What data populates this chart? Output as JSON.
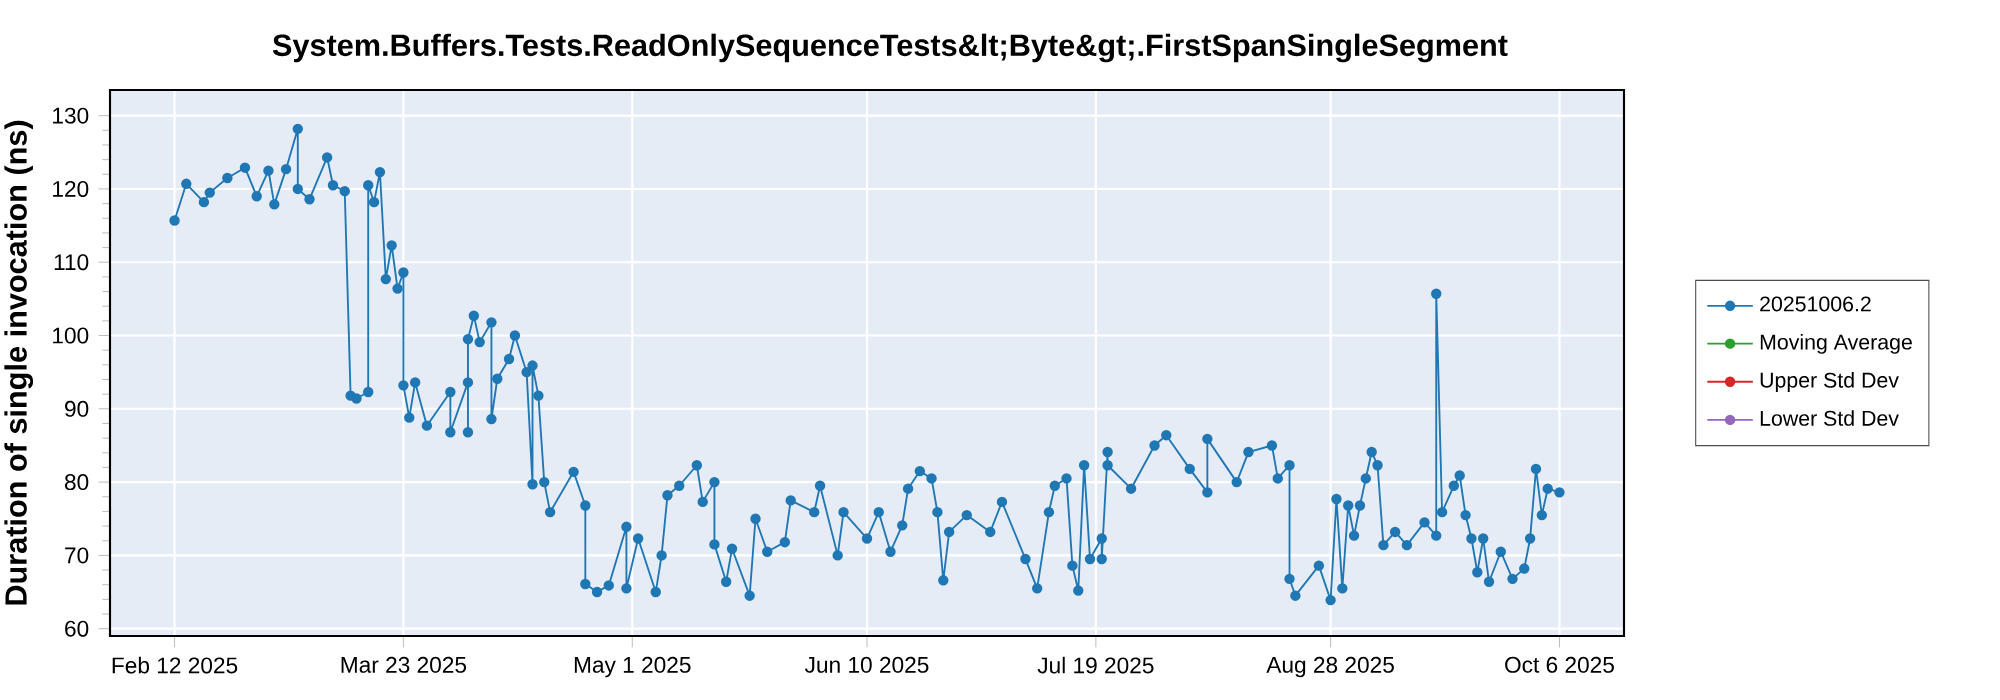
{
  "chart_data": {
    "type": "line",
    "title": "System.Buffers.Tests.ReadOnlySequenceTests&lt;Byte&gt;.FirstSpanSingleSegment",
    "ylabel": "Duration of single invocation (ns)",
    "x": [
      "2025-02-12",
      "2025-02-14",
      "2025-02-17",
      "2025-02-18",
      "2025-02-21",
      "2025-02-24",
      "2025-02-26",
      "2025-02-28",
      "2025-03-01",
      "2025-03-03",
      "2025-03-05",
      "2025-03-05",
      "2025-03-07",
      "2025-03-10",
      "2025-03-11",
      "2025-03-13",
      "2025-03-14",
      "2025-03-15",
      "2025-03-17",
      "2025-03-17",
      "2025-03-18",
      "2025-03-19",
      "2025-03-20",
      "2025-03-21",
      "2025-03-22",
      "2025-03-23",
      "2025-03-23",
      "2025-03-24",
      "2025-03-25",
      "2025-03-27",
      "2025-03-31",
      "2025-03-31",
      "2025-04-03",
      "2025-04-03",
      "2025-04-03",
      "2025-04-04",
      "2025-04-05",
      "2025-04-07",
      "2025-04-07",
      "2025-04-08",
      "2025-04-10",
      "2025-04-11",
      "2025-04-13",
      "2025-04-14",
      "2025-04-14",
      "2025-04-15",
      "2025-04-16",
      "2025-04-17",
      "2025-04-21",
      "2025-04-23",
      "2025-04-23",
      "2025-04-25",
      "2025-04-27",
      "2025-04-30",
      "2025-04-30",
      "2025-05-02",
      "2025-05-05",
      "2025-05-06",
      "2025-05-07",
      "2025-05-09",
      "2025-05-12",
      "2025-05-13",
      "2025-05-15",
      "2025-05-15",
      "2025-05-17",
      "2025-05-18",
      "2025-05-21",
      "2025-05-22",
      "2025-05-24",
      "2025-05-27",
      "2025-05-28",
      "2025-06-01",
      "2025-06-02",
      "2025-06-05",
      "2025-06-06",
      "2025-06-10",
      "2025-06-12",
      "2025-06-14",
      "2025-06-16",
      "2025-06-17",
      "2025-06-19",
      "2025-06-21",
      "2025-06-22",
      "2025-06-23",
      "2025-06-24",
      "2025-06-27",
      "2025-07-01",
      "2025-07-03",
      "2025-07-07",
      "2025-07-09",
      "2025-07-11",
      "2025-07-12",
      "2025-07-14",
      "2025-07-15",
      "2025-07-16",
      "2025-07-17",
      "2025-07-18",
      "2025-07-20",
      "2025-07-20",
      "2025-07-21",
      "2025-07-21",
      "2025-07-25",
      "2025-07-29",
      "2025-07-31",
      "2025-08-04",
      "2025-08-07",
      "2025-08-07",
      "2025-08-12",
      "2025-08-14",
      "2025-08-18",
      "2025-08-19",
      "2025-08-21",
      "2025-08-21",
      "2025-08-22",
      "2025-08-26",
      "2025-08-28",
      "2025-08-29",
      "2025-08-30",
      "2025-08-31",
      "2025-09-01",
      "2025-09-02",
      "2025-09-03",
      "2025-09-04",
      "2025-09-05",
      "2025-09-06",
      "2025-09-08",
      "2025-09-10",
      "2025-09-13",
      "2025-09-15",
      "2025-09-15",
      "2025-09-16",
      "2025-09-18",
      "2025-09-19",
      "2025-09-20",
      "2025-09-21",
      "2025-09-22",
      "2025-09-23",
      "2025-09-24",
      "2025-09-26",
      "2025-09-28",
      "2025-09-30",
      "2025-10-01",
      "2025-10-02",
      "2025-10-03",
      "2025-10-04",
      "2025-10-06"
    ],
    "series": [
      {
        "name": "20251006.2",
        "color": "#1f77b4",
        "values": [
          115.7,
          120.7,
          118.2,
          119.5,
          121.5,
          122.9,
          119.0,
          122.5,
          117.9,
          122.7,
          128.2,
          120.0,
          118.6,
          124.3,
          120.5,
          119.7,
          91.8,
          91.4,
          92.3,
          120.5,
          118.2,
          122.3,
          107.7,
          112.3,
          106.4,
          108.6,
          93.2,
          88.8,
          93.6,
          87.7,
          92.3,
          86.8,
          93.6,
          86.8,
          99.5,
          102.7,
          99.1,
          101.8,
          88.6,
          94.1,
          96.8,
          100.0,
          95.0,
          79.7,
          95.9,
          91.8,
          80.0,
          75.9,
          81.4,
          76.8,
          66.1,
          65.0,
          65.9,
          73.9,
          65.5,
          72.3,
          65.0,
          70.0,
          78.2,
          79.5,
          82.3,
          77.3,
          80.0,
          71.5,
          66.4,
          70.9,
          64.5,
          75.0,
          70.5,
          71.8,
          77.5,
          75.9,
          79.5,
          70.0,
          75.9,
          72.3,
          75.9,
          70.5,
          74.1,
          79.1,
          81.5,
          80.5,
          75.9,
          66.6,
          73.2,
          75.5,
          73.2,
          77.3,
          69.5,
          65.5,
          75.9,
          79.5,
          80.5,
          68.6,
          65.2,
          82.3,
          69.5,
          72.3,
          69.5,
          84.1,
          82.3,
          79.1,
          85.0,
          86.4,
          81.8,
          78.6,
          85.9,
          80.0,
          84.1,
          85.0,
          80.5,
          82.3,
          66.8,
          64.5,
          68.6,
          63.9,
          77.7,
          65.5,
          76.8,
          72.7,
          76.8,
          80.5,
          84.1,
          82.3,
          71.4,
          73.2,
          71.4,
          74.5,
          72.7,
          105.7,
          75.9,
          79.5,
          80.9,
          75.5,
          72.3,
          67.7,
          72.3,
          66.4,
          70.5,
          66.8,
          68.2,
          72.3,
          81.8,
          75.5,
          79.1,
          78.6
        ]
      },
      {
        "name": "Moving Average",
        "color": "#2ca02c",
        "values": [
          null,
          null,
          null,
          null,
          null,
          null,
          null,
          null,
          null,
          null,
          null,
          null,
          null,
          null,
          null,
          null,
          null,
          null,
          null,
          null,
          null,
          null,
          null,
          null,
          null,
          null,
          null,
          null,
          null,
          null,
          null,
          null,
          null,
          null,
          null,
          null,
          null,
          null,
          null,
          null,
          null,
          null,
          null,
          null,
          null,
          null,
          null,
          null,
          null,
          null,
          null,
          null,
          null,
          null,
          null,
          null,
          null,
          null,
          null,
          null,
          null,
          null,
          null,
          null,
          null,
          null,
          null,
          null,
          null,
          null,
          null,
          null,
          null,
          null,
          null,
          null,
          null,
          null,
          null,
          null,
          null,
          null,
          null,
          null,
          null,
          null,
          null,
          null,
          null,
          null,
          null,
          null,
          null,
          null,
          null,
          null,
          null,
          null,
          null,
          null,
          null,
          null,
          null,
          null,
          null,
          null,
          null,
          null,
          null,
          null,
          null,
          null,
          null,
          null,
          null,
          null,
          null,
          null,
          null,
          null,
          null,
          null,
          null,
          null,
          null,
          null,
          null,
          null,
          null,
          null,
          null,
          null,
          null,
          null,
          null,
          null,
          null,
          null,
          null,
          null,
          null,
          null,
          null,
          null,
          null,
          null
        ]
      },
      {
        "name": "Upper Std Dev",
        "color": "#d62728",
        "values": [
          null,
          null,
          null,
          null,
          null,
          null,
          null,
          null,
          null,
          null,
          null,
          null,
          null,
          null,
          null,
          null,
          null,
          null,
          null,
          null,
          null,
          null,
          null,
          null,
          null,
          null,
          null,
          null,
          null,
          null,
          null,
          null,
          null,
          null,
          null,
          null,
          null,
          null,
          null,
          null,
          null,
          null,
          null,
          null,
          null,
          null,
          null,
          null,
          null,
          null,
          null,
          null,
          null,
          null,
          null,
          null,
          null,
          null,
          null,
          null,
          null,
          null,
          null,
          null,
          null,
          null,
          null,
          null,
          null,
          null,
          null,
          null,
          null,
          null,
          null,
          null,
          null,
          null,
          null,
          null,
          null,
          null,
          null,
          null,
          null,
          null,
          null,
          null,
          null,
          null,
          null,
          null,
          null,
          null,
          null,
          null,
          null,
          null,
          null,
          null,
          null,
          null,
          null,
          null,
          null,
          null,
          null,
          null,
          null,
          null,
          null,
          null,
          null,
          null,
          null,
          null,
          null,
          null,
          null,
          null,
          null,
          null,
          null,
          null,
          null,
          null,
          null,
          null,
          null,
          null,
          null,
          null,
          null,
          null,
          null,
          null,
          null,
          null,
          null,
          null,
          null,
          null,
          null,
          null,
          null,
          null
        ]
      },
      {
        "name": "Lower Std Dev",
        "color": "#9467bd",
        "values": [
          null,
          null,
          null,
          null,
          null,
          null,
          null,
          null,
          null,
          null,
          null,
          null,
          null,
          null,
          null,
          null,
          null,
          null,
          null,
          null,
          null,
          null,
          null,
          null,
          null,
          null,
          null,
          null,
          null,
          null,
          null,
          null,
          null,
          null,
          null,
          null,
          null,
          null,
          null,
          null,
          null,
          null,
          null,
          null,
          null,
          null,
          null,
          null,
          null,
          null,
          null,
          null,
          null,
          null,
          null,
          null,
          null,
          null,
          null,
          null,
          null,
          null,
          null,
          null,
          null,
          null,
          null,
          null,
          null,
          null,
          null,
          null,
          null,
          null,
          null,
          null,
          null,
          null,
          null,
          null,
          null,
          null,
          null,
          null,
          null,
          null,
          null,
          null,
          null,
          null,
          null,
          null,
          null,
          null,
          null,
          null,
          null,
          null,
          null,
          null,
          null,
          null,
          null,
          null,
          null,
          null,
          null,
          null,
          null,
          null,
          null,
          null,
          null,
          null,
          null,
          null,
          null,
          null,
          null,
          null,
          null,
          null,
          null,
          null,
          null,
          null,
          null,
          null,
          null,
          null,
          null,
          null,
          null,
          null,
          null,
          null,
          null,
          null,
          null,
          null,
          null,
          null,
          null,
          null,
          null,
          null
        ]
      }
    ],
    "xlim": [
      "2025-02-01",
      "2025-10-17"
    ],
    "xticks": [
      {
        "value": "2025-02-12",
        "label": "Feb 12 2025"
      },
      {
        "value": "2025-03-23",
        "label": "Mar 23 2025"
      },
      {
        "value": "2025-05-01",
        "label": "May 1 2025"
      },
      {
        "value": "2025-06-10",
        "label": "Jun 10 2025"
      },
      {
        "value": "2025-07-19",
        "label": "Jul 19 2025"
      },
      {
        "value": "2025-08-28",
        "label": "Aug 28 2025"
      },
      {
        "value": "2025-10-06",
        "label": "Oct 6 2025"
      }
    ],
    "ylim": [
      59,
      133.5
    ],
    "yticks": [
      60,
      70,
      80,
      90,
      100,
      110,
      120,
      130
    ],
    "grid": true,
    "legend": "right",
    "marker": "circle",
    "line_style": "solid"
  }
}
